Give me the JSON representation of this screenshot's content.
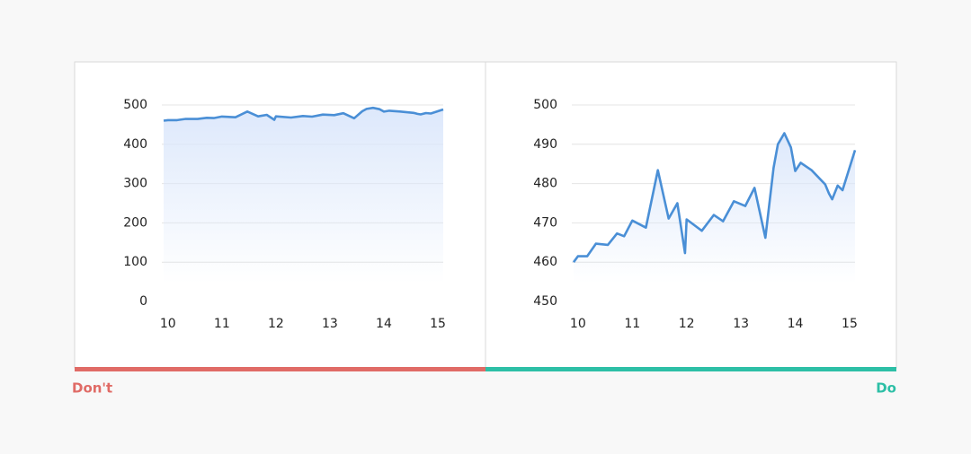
{
  "chart_data": [
    {
      "type": "line",
      "caption": "Don't",
      "caption_color": "#e06b66",
      "color": "#4a8fd6",
      "x": [
        9.92,
        10.0,
        10.17,
        10.33,
        10.55,
        10.72,
        10.85,
        11.0,
        11.25,
        11.47,
        11.67,
        11.83,
        11.97,
        12.0,
        12.28,
        12.5,
        12.67,
        12.87,
        13.08,
        13.25,
        13.45,
        13.6,
        13.68,
        13.8,
        13.92,
        14.0,
        14.1,
        14.3,
        14.55,
        14.62,
        14.68,
        14.78,
        14.87,
        15.1
      ],
      "values": [
        460.0,
        461.5,
        461.5,
        464.7,
        464.4,
        467.3,
        466.6,
        470.6,
        468.8,
        483.4,
        471.1,
        475.0,
        462.3,
        470.9,
        468.0,
        472.0,
        470.4,
        475.5,
        474.3,
        478.9,
        466.2,
        484.0,
        490.0,
        492.8,
        489.2,
        483.2,
        485.3,
        483.4,
        479.8,
        477.5,
        476.0,
        479.5,
        478.3,
        488.5
      ],
      "xlim": [
        9.92,
        15.1
      ],
      "xticks": [
        10,
        11,
        12,
        13,
        14,
        15
      ],
      "ylim": [
        0,
        500
      ],
      "yticks": [
        0,
        100,
        200,
        300,
        400,
        500
      ],
      "grid": true
    },
    {
      "type": "line",
      "caption": "Do",
      "caption_color": "#2dbfa6",
      "color": "#4a8fd6",
      "x": [
        9.92,
        10.0,
        10.17,
        10.33,
        10.55,
        10.72,
        10.85,
        11.0,
        11.25,
        11.47,
        11.67,
        11.83,
        11.97,
        12.0,
        12.28,
        12.5,
        12.67,
        12.87,
        13.08,
        13.25,
        13.45,
        13.6,
        13.68,
        13.8,
        13.92,
        14.0,
        14.1,
        14.3,
        14.55,
        14.62,
        14.68,
        14.78,
        14.87,
        15.1
      ],
      "values": [
        460.0,
        461.5,
        461.5,
        464.7,
        464.4,
        467.3,
        466.6,
        470.6,
        468.8,
        483.4,
        471.1,
        475.0,
        462.3,
        470.9,
        468.0,
        472.0,
        470.4,
        475.5,
        474.3,
        478.9,
        466.2,
        484.0,
        490.0,
        492.8,
        489.2,
        483.2,
        485.3,
        483.4,
        479.8,
        477.5,
        476.0,
        479.5,
        478.3,
        488.5
      ],
      "xlim": [
        9.92,
        15.1
      ],
      "xticks": [
        10,
        11,
        12,
        13,
        14,
        15
      ],
      "ylim": [
        450,
        500
      ],
      "yticks": [
        450,
        460,
        470,
        480,
        490,
        500
      ],
      "grid": true
    }
  ]
}
